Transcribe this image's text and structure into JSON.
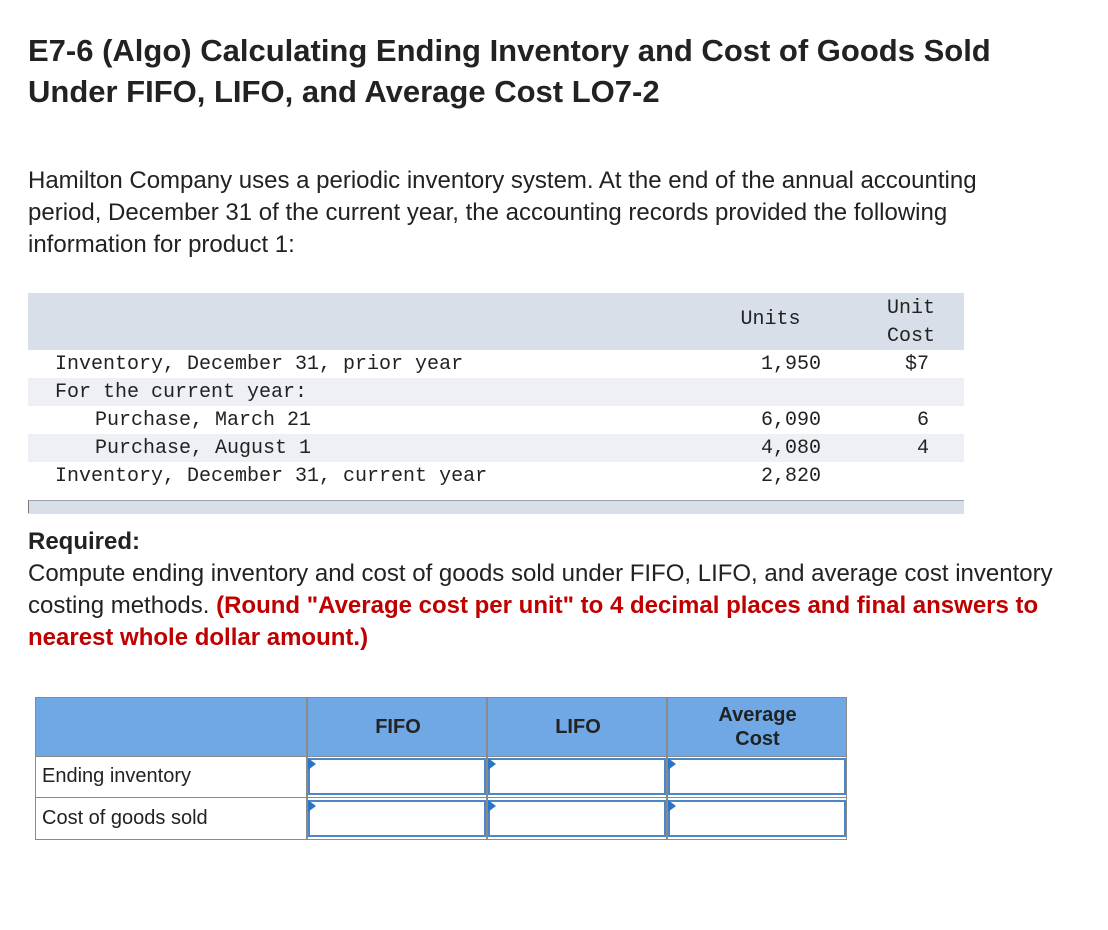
{
  "title": "E7-6 (Algo) Calculating Ending Inventory and Cost of Goods Sold Under FIFO, LIFO, and Average Cost LO7-2",
  "intro": "Hamilton Company uses a periodic inventory system. At the end of the annual accounting period, December 31 of the current year, the accounting records provided the following information for product 1:",
  "inventory_table": {
    "headers": {
      "units": "Units",
      "unit_cost_line1": "Unit",
      "unit_cost_line2": "Cost"
    },
    "rows": [
      {
        "label": "Inventory, December 31, prior year",
        "units": "1,950",
        "cost": "$7"
      },
      {
        "label": "For the current year:",
        "units": "",
        "cost": ""
      },
      {
        "label": "Purchase, March 21",
        "units": "6,090",
        "cost": "6"
      },
      {
        "label": "Purchase, August 1",
        "units": "4,080",
        "cost": "4"
      },
      {
        "label": "Inventory, December 31, current year",
        "units": "2,820",
        "cost": ""
      }
    ]
  },
  "required": {
    "heading": "Required:",
    "text": "Compute ending inventory and cost of goods sold under FIFO, LIFO, and average cost inventory costing methods.",
    "note": "(Round \"Average cost per unit\" to 4 decimal places and final answers to nearest whole dollar amount.)"
  },
  "answer_table": {
    "headers": {
      "fifo": "FIFO",
      "lifo": "LIFO",
      "avg_line1": "Average",
      "avg_line2": "Cost"
    },
    "rows": [
      {
        "label": "Ending inventory",
        "fifo": "",
        "lifo": "",
        "avg": ""
      },
      {
        "label": "Cost of goods sold",
        "fifo": "",
        "lifo": "",
        "avg": ""
      }
    ]
  },
  "colors": {
    "header_blue": "#6fa8e4",
    "table_gray": "#d9dfe9",
    "note_red": "#c00000",
    "input_border": "#4a86c8"
  }
}
